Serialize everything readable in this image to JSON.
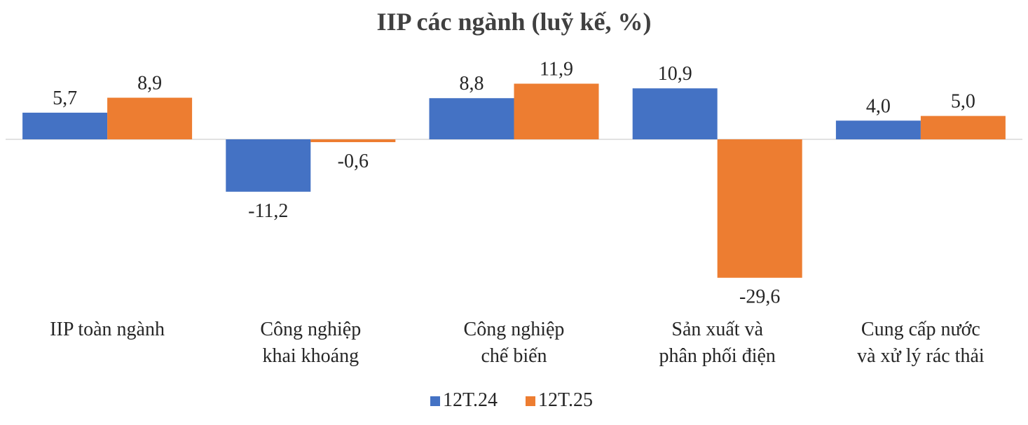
{
  "chart_data": {
    "type": "bar",
    "title": "IIP các ngành (luỹ kế, %)",
    "categories": [
      [
        "IIP toàn ngành"
      ],
      [
        "Công nghiệp",
        "khai khoáng"
      ],
      [
        "Công nghiệp",
        "chế biến"
      ],
      [
        "Sản xuất và",
        "phân phối điện"
      ],
      [
        "Cung cấp nước",
        "và xử lý rác thải"
      ]
    ],
    "series": [
      {
        "name": "12T.24",
        "color": "#4472C4",
        "values": [
          5.7,
          -11.2,
          8.8,
          10.9,
          4.0
        ],
        "labels": [
          "5,7",
          "-11,2",
          "8,8",
          "10,9",
          "4,0"
        ]
      },
      {
        "name": "12T.25",
        "color": "#ED7D31",
        "values": [
          8.9,
          -0.6,
          11.9,
          -29.6,
          5.0
        ],
        "labels": [
          "8,9",
          "-0,6",
          "11,9",
          "-29,6",
          "5,0"
        ]
      }
    ],
    "ylim": [
      -29.6,
      11.9
    ],
    "grid": false,
    "legend": "bottom"
  }
}
